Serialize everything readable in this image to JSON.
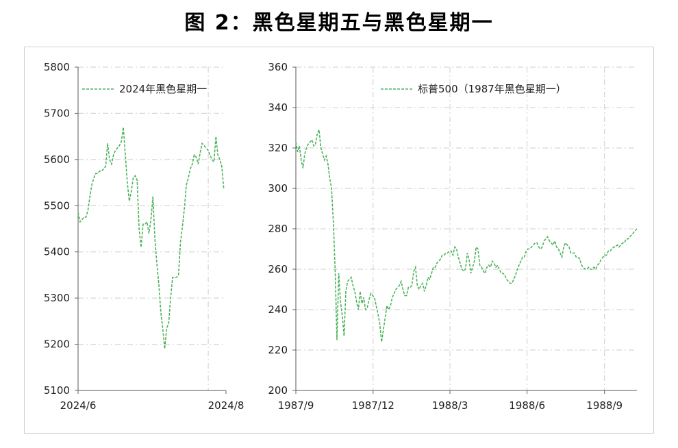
{
  "title": "图 2：黑色星期五与黑色星期一",
  "line_color": "#4cb35a",
  "chart_data": [
    {
      "type": "line",
      "title": "",
      "xlabel": "",
      "ylabel": "",
      "ylim": [
        5100,
        5800
      ],
      "yticks": [
        "5100",
        "5200",
        "5300",
        "5400",
        "5500",
        "5600",
        "5700",
        "5800"
      ],
      "xticks": [
        "2024/6",
        "2024/8"
      ],
      "grid": true,
      "legend": "top-left",
      "series": [
        {
          "name": "2024年黑色星期一",
          "line_style": "dashed",
          "values": [
            5485,
            5465,
            5470,
            5475,
            5475,
            5490,
            5520,
            5545,
            5560,
            5570,
            5570,
            5575,
            5575,
            5580,
            5585,
            5635,
            5600,
            5590,
            5610,
            5620,
            5625,
            5630,
            5640,
            5670,
            5610,
            5550,
            5510,
            5530,
            5560,
            5565,
            5555,
            5450,
            5410,
            5460,
            5460,
            5465,
            5440,
            5470,
            5520,
            5430,
            5375,
            5330,
            5270,
            5235,
            5190,
            5235,
            5245,
            5300,
            5345,
            5345,
            5345,
            5350,
            5420,
            5455,
            5495,
            5545,
            5560,
            5580,
            5590,
            5610,
            5605,
            5590,
            5615,
            5635,
            5630,
            5625,
            5620,
            5610,
            5600,
            5595,
            5650,
            5610,
            5600,
            5585,
            5535
          ]
        }
      ]
    },
    {
      "type": "line",
      "title": "",
      "xlabel": "",
      "ylabel": "",
      "ylim": [
        200,
        360
      ],
      "yticks": [
        "200",
        "220",
        "240",
        "260",
        "280",
        "300",
        "320",
        "340",
        "360"
      ],
      "xticks": [
        "1987/9",
        "1987/12",
        "1988/3",
        "1988/6",
        "1988/9"
      ],
      "grid": true,
      "legend": "top-right",
      "series": [
        {
          "name": "标普500（1987年黑色星期一）",
          "line_style": "dashed",
          "values": [
            323,
            318,
            321,
            314,
            310,
            317,
            320,
            322,
            323,
            324,
            321,
            322,
            327,
            329,
            320,
            317,
            314,
            316,
            312,
            305,
            300,
            283,
            259,
            225,
            258,
            244,
            237,
            227,
            249,
            254,
            255,
            256,
            252,
            249,
            244,
            240,
            249,
            243,
            246,
            240,
            241,
            245,
            248,
            247,
            246,
            242,
            238,
            233,
            224,
            230,
            236,
            242,
            240,
            242,
            246,
            248,
            250,
            251,
            252,
            254,
            250,
            247,
            247,
            251,
            251,
            252,
            259,
            261,
            252,
            250,
            252,
            253,
            249,
            252,
            256,
            255,
            258,
            261,
            261,
            263,
            264,
            265,
            267,
            267,
            268,
            268,
            269,
            269,
            267,
            271,
            270,
            266,
            263,
            260,
            259,
            260,
            268,
            265,
            258,
            261,
            264,
            271,
            270,
            262,
            261,
            259,
            258,
            261,
            262,
            261,
            264,
            263,
            261,
            262,
            260,
            258,
            258,
            257,
            255,
            254,
            253,
            253,
            255,
            257,
            260,
            262,
            264,
            266,
            266,
            269,
            270,
            270,
            271,
            272,
            273,
            273,
            271,
            270,
            271,
            274,
            275,
            276,
            274,
            273,
            272,
            274,
            271,
            270,
            268,
            266,
            271,
            273,
            272,
            271,
            268,
            268,
            268,
            266,
            266,
            265,
            262,
            261,
            260,
            260,
            261,
            260,
            260,
            261,
            260,
            262,
            263,
            265,
            266,
            267,
            267,
            269,
            269,
            270,
            271,
            271,
            272,
            271,
            272,
            273,
            273,
            275,
            275,
            276,
            277,
            278,
            279,
            280
          ]
        }
      ]
    }
  ]
}
